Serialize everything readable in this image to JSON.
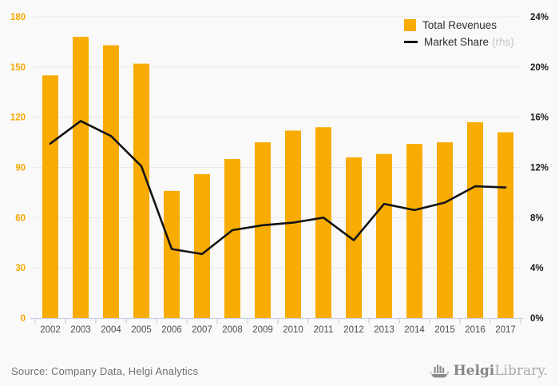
{
  "chart_data": {
    "type": "combo",
    "categories": [
      "2002",
      "2003",
      "2004",
      "2005",
      "2006",
      "2007",
      "2008",
      "2009",
      "2010",
      "2011",
      "2012",
      "2013",
      "2014",
      "2015",
      "2016",
      "2017"
    ],
    "series": [
      {
        "name": "Total Revenues",
        "type": "bar",
        "axis": "left",
        "color": "#F8AB00",
        "values": [
          145,
          168,
          163,
          152,
          76,
          86,
          95,
          105,
          112,
          114,
          96,
          98,
          104,
          105,
          117,
          111
        ]
      },
      {
        "name": "Market Share",
        "type": "line",
        "axis": "right",
        "color": "#141414",
        "values": [
          13.9,
          15.7,
          14.5,
          12.1,
          5.5,
          5.1,
          7.0,
          7.4,
          7.6,
          8.0,
          6.2,
          9.1,
          8.6,
          9.2,
          10.5,
          10.4
        ]
      }
    ],
    "left_axis": {
      "min": 0,
      "max": 180,
      "step": 30,
      "labels": [
        "0",
        "30",
        "60",
        "90",
        "120",
        "150",
        "180"
      ],
      "color": "#F5A800"
    },
    "right_axis": {
      "min": 0,
      "max": 24,
      "step": 4,
      "labels": [
        "0%",
        "4%",
        "8%",
        "12%",
        "16%",
        "20%",
        "24%"
      ],
      "color": "#1a1a1a"
    },
    "grid": true,
    "legend_position": "top-right",
    "title": "",
    "xlabel": "",
    "ylabel": ""
  },
  "legend": {
    "bar_label": "Total Revenues",
    "line_label": "Market Share",
    "line_label_suffix": "(rhs)"
  },
  "footer": {
    "source": "Source: Company Data, Helgi Analytics",
    "logo_bold": "Helgi",
    "logo_light": "Library."
  },
  "colors": {
    "bar": "#F8AB00",
    "line": "#141414",
    "gridline": "#e9e9e9",
    "axis_line": "#c9d1e4",
    "year_label": "#4d4d4d",
    "background": "#f9f9f9"
  }
}
